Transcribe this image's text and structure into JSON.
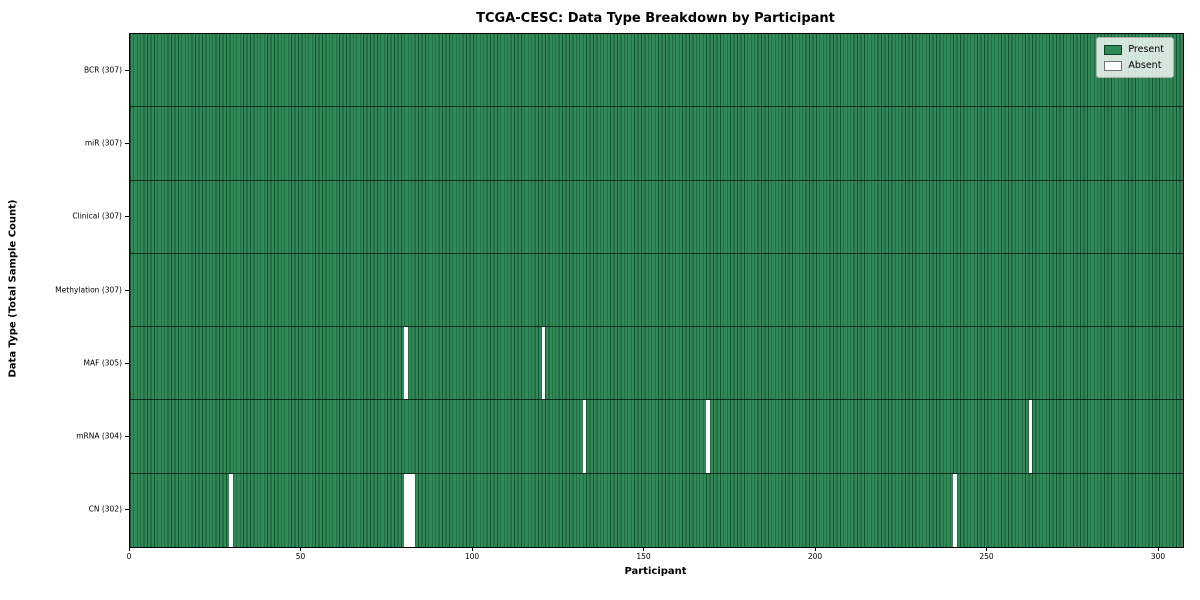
{
  "chart_data": {
    "type": "heatmap",
    "title": "TCGA-CESC: Data Type Breakdown by Participant",
    "xlabel": "Participant",
    "ylabel": "Data Type (Total Sample Count)",
    "n_participants": 307,
    "x_axis_range": [
      0,
      307
    ],
    "x_ticks": [
      0,
      50,
      100,
      150,
      200,
      250,
      300
    ],
    "grid": false,
    "legend_position": "upper right",
    "rows": [
      {
        "label": "BCR (307)",
        "total_samples": 307,
        "absent_participants": []
      },
      {
        "label": "miR (307)",
        "total_samples": 307,
        "absent_participants": []
      },
      {
        "label": "Clinical (307)",
        "total_samples": 307,
        "absent_participants": []
      },
      {
        "label": "Methylation (307)",
        "total_samples": 307,
        "absent_participants": []
      },
      {
        "label": "MAF (305)",
        "total_samples": 305,
        "absent_participants": [
          80,
          120
        ]
      },
      {
        "label": "mRNA (304)",
        "total_samples": 304,
        "absent_participants": [
          132,
          168,
          262
        ]
      },
      {
        "label": "CN (302)",
        "total_samples": 302,
        "absent_participants": [
          29,
          80,
          81,
          82,
          240
        ]
      }
    ],
    "legend": [
      {
        "label": "Present",
        "color": "#2e8b57"
      },
      {
        "label": "Absent",
        "color": "#ffffff"
      }
    ],
    "colors": {
      "present": "#2e8b57",
      "absent": "#ffffff",
      "bar_edge": "#1e4f33",
      "row_separator": "rgba(0,0,0,0.65)"
    }
  }
}
